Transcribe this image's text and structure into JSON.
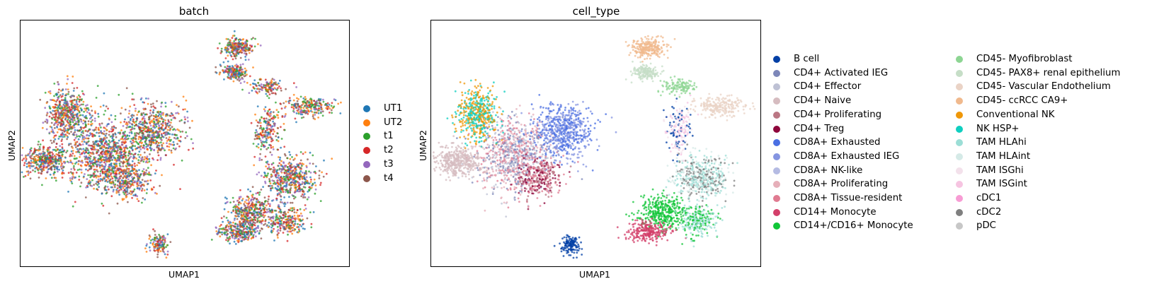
{
  "chart_data": [
    {
      "type": "scatter",
      "title": "batch",
      "xlabel": "UMAP1",
      "ylabel": "UMAP2",
      "grid": false,
      "legend": "right",
      "series": [
        {
          "name": "UT1",
          "color": "#1f77b4"
        },
        {
          "name": "UT2",
          "color": "#ff7f0e"
        },
        {
          "name": "t1",
          "color": "#2ca02c"
        },
        {
          "name": "t2",
          "color": "#d62728"
        },
        {
          "name": "t3",
          "color": "#9467bd"
        },
        {
          "name": "t4",
          "color": "#8c564b"
        }
      ]
    },
    {
      "type": "scatter",
      "title": "cell_type",
      "xlabel": "UMAP1",
      "ylabel": "UMAP2",
      "grid": false,
      "legend": "right",
      "series": [
        {
          "name": "B cell",
          "color": "#023fa5"
        },
        {
          "name": "CD4+ Activated IEG",
          "color": "#7d87b9"
        },
        {
          "name": "CD4+ Effector",
          "color": "#bec1d4"
        },
        {
          "name": "CD4+ Naive",
          "color": "#d6bcc0"
        },
        {
          "name": "CD4+ Proliferating",
          "color": "#bb7784"
        },
        {
          "name": "CD4+ Treg",
          "color": "#8e063b"
        },
        {
          "name": "CD8A+ Exhausted",
          "color": "#4a6fe3"
        },
        {
          "name": "CD8A+ Exhausted IEG",
          "color": "#8595e1"
        },
        {
          "name": "CD8A+ NK-like",
          "color": "#b5bbe3"
        },
        {
          "name": "CD8A+ Proliferating",
          "color": "#e6afb9"
        },
        {
          "name": "CD8A+ Tissue-resident",
          "color": "#e07b91"
        },
        {
          "name": "CD14+ Monocyte",
          "color": "#d33f6a"
        },
        {
          "name": "CD14+/CD16+ Monocyte",
          "color": "#11c638"
        },
        {
          "name": "CD45- Myofibroblast",
          "color": "#8dd593"
        },
        {
          "name": "CD45- PAX8+ renal epithelium",
          "color": "#c6dec7"
        },
        {
          "name": "CD45- Vascular Endothelium",
          "color": "#ead3c6"
        },
        {
          "name": "CD45- ccRCC CA9+",
          "color": "#f0b98d"
        },
        {
          "name": "Conventional NK",
          "color": "#ef9708"
        },
        {
          "name": "NK HSP+",
          "color": "#0fcfc0"
        },
        {
          "name": "TAM HLAhi",
          "color": "#9cded6"
        },
        {
          "name": "TAM HLAint",
          "color": "#d5eae7"
        },
        {
          "name": "TAM ISGhi",
          "color": "#f3e1eb"
        },
        {
          "name": "TAM ISGint",
          "color": "#f6c4e1"
        },
        {
          "name": "cDC1",
          "color": "#f79cd4"
        },
        {
          "name": "cDC2",
          "color": "#7f7f7f"
        },
        {
          "name": "pDC",
          "color": "#c7c7c7"
        }
      ]
    }
  ]
}
